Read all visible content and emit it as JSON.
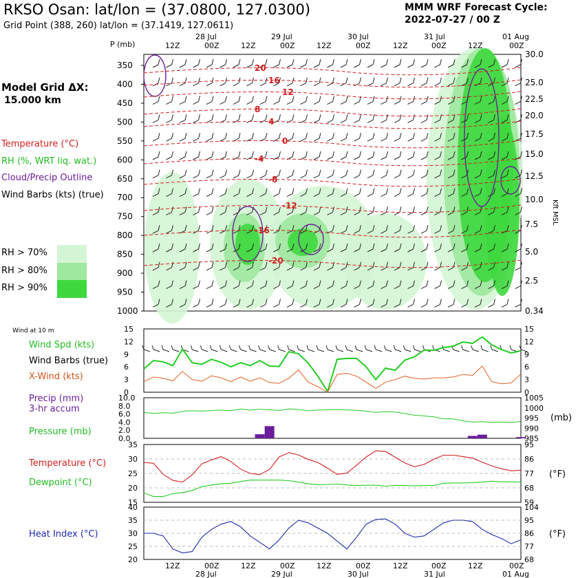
{
  "header": {
    "title": "RKSO Osan:  lat/lon = (37.0800, 127.0300)",
    "subtitle": "Grid Point (388, 260) lat/lon = (37.1419, 127.0611)",
    "cycle_line1": "MMM WRF Forecast Cycle:",
    "cycle_line2": "2022-07-27 / 00  Z",
    "grid_label1": "Model Grid ΔX:",
    "grid_label2": "15.000 km"
  },
  "legend": {
    "temperature": "Temperature (°C)",
    "rh": "RH (%, WRT liq. wat.)",
    "cloud": "Cloud/Precip Outline",
    "wind_barbs": "Wind Barbs (kts) (true)",
    "rh70": "RH > 70%",
    "rh80": "RH > 80%",
    "rh90": "RH > 90%",
    "wind10m": "Wind at 10 m",
    "wind_spd": "Wind Spd (kts)",
    "wind_barbs2": "Wind Barbs (true)",
    "xwind": "X-Wind (kts)",
    "precip1": "Precip (mm)",
    "precip2": "3-hr accum",
    "pressure": "Pressure (mb)",
    "temp_c": "Temperature (°C)",
    "dewpoint": "Dewpoint (°C)",
    "heat_index": "Heat Index (°C)",
    "unit_mb": "(mb)",
    "unit_f1": "(°F)",
    "unit_f2": "(°F)",
    "unit_kft": "Kft MSL",
    "p_label": "P (mb)"
  },
  "colors": {
    "temperature": "#d21e1e",
    "rh_green": "#22cc22",
    "rh70": "#d4f5d4",
    "rh80": "#9fe89f",
    "rh90": "#3ed83e",
    "cloud": "#6a1e9b",
    "xwind": "#e0601e",
    "heat_index": "#1e2aa8"
  },
  "time_axis": {
    "ticks": [
      "12Z",
      "00Z",
      "12Z",
      "00Z",
      "12Z",
      "00Z",
      "12Z",
      "00Z",
      "12Z",
      "00Z"
    ],
    "dates": [
      "28 Jul",
      "29 Jul",
      "30 Jul",
      "31 Jul",
      "01 Aug"
    ]
  },
  "chart_data": [
    {
      "type": "heatmap",
      "ylabel": "P (mb)",
      "pressure_levels": [
        350,
        400,
        450,
        500,
        550,
        600,
        650,
        700,
        750,
        800,
        850,
        900,
        950,
        1000
      ],
      "height_kft": [
        "30.0",
        "25.0",
        "22.5",
        "20.0",
        "17.5",
        "15.0",
        "12.5",
        "10.0",
        "7.5",
        "5.0",
        "2.5",
        "0.34"
      ],
      "isotherm_labels": [
        "20",
        "16",
        "12",
        "8",
        "4",
        "0",
        "-4",
        "-8",
        "-12",
        "-16",
        "-20"
      ]
    },
    {
      "type": "line",
      "yticks": [
        "15",
        "12",
        "9",
        "6",
        "3",
        "0"
      ],
      "series": [
        {
          "name": "Wind Spd (kts)",
          "values": [
            5.5,
            7.5,
            7.2,
            6.3,
            10.2,
            7.0,
            6.6,
            7.8,
            7.1,
            6.0,
            7.0,
            6.3,
            7.5,
            6.2,
            6.1,
            9.6,
            9.1,
            6.9,
            3.8,
            0.2,
            7.8,
            8.0,
            8.0,
            6.0,
            3.0,
            5.7,
            5.2,
            7.6,
            8.4,
            10.0,
            9.9,
            10.6,
            10.9,
            11.9,
            11.6,
            13.1,
            11.2,
            10.1,
            9.3,
            9.8
          ]
        },
        {
          "name": "X-Wind (kts)",
          "values": [
            2.5,
            3.6,
            3.3,
            2.7,
            4.9,
            3.0,
            2.6,
            3.9,
            3.4,
            2.5,
            3.6,
            2.6,
            3.4,
            2.3,
            2.1,
            3.3,
            5.3,
            2.4,
            1.3,
            0.0,
            4.2,
            4.5,
            3.8,
            2.4,
            0.9,
            2.4,
            3.0,
            3.8,
            3.3,
            3.1,
            3.4,
            3.4,
            3.6,
            4.2,
            4.0,
            6.2,
            2.5,
            2.0,
            2.2,
            4.3
          ]
        }
      ]
    },
    {
      "type": "bar",
      "yticks_left": [
        "10.0",
        "8.0",
        "6.0",
        "4.0",
        "2.0",
        "0.0"
      ],
      "yticks_right": [
        "1005",
        "1000",
        "995",
        "990",
        "985"
      ],
      "series": [
        {
          "name": "Pressure (mb)",
          "values": [
            997.8,
            997.3,
            997.6,
            997.4,
            998.3,
            998.6,
            998.4,
            998.7,
            998.9,
            998.7,
            999.4,
            998.9,
            999.3,
            999.1,
            998.7,
            999.5,
            999.2,
            998.6,
            998.9,
            999.1,
            999.1,
            999.0,
            998.8,
            998.4,
            997.8,
            998.1,
            997.9,
            997.2,
            996.4,
            996.0,
            995.6,
            994.6,
            994.6,
            993.6,
            993.0,
            993.2,
            992.8,
            993.0,
            992.8,
            993.3
          ]
        },
        {
          "name": "Precip (mm)",
          "values": [
            0,
            0,
            0,
            0,
            0,
            0,
            0,
            0,
            0,
            0,
            0,
            0,
            1.0,
            3.0,
            0,
            0,
            0,
            0,
            0,
            0,
            0,
            0,
            0,
            0,
            0,
            0,
            0,
            0,
            0,
            0,
            0,
            0,
            0,
            0,
            0.6,
            0.9,
            0,
            0,
            0,
            0.3
          ]
        }
      ]
    },
    {
      "type": "line",
      "yticks_left": [
        "35",
        "30",
        "25",
        "20",
        "15"
      ],
      "yticks_right": [
        "95",
        "86",
        "77",
        "68",
        "59"
      ],
      "series": [
        {
          "name": "Temperature (°C)",
          "values": [
            28.8,
            28.5,
            24.7,
            22.6,
            22.0,
            24.5,
            28.3,
            29.7,
            30.8,
            29.1,
            26.5,
            25.0,
            24.6,
            26.4,
            30.7,
            32.2,
            31.4,
            29.8,
            28.8,
            26.8,
            24.7,
            25.1,
            27.8,
            30.7,
            32.8,
            32.6,
            30.6,
            28.6,
            27.3,
            28.1,
            29.9,
            31.3,
            31.3,
            30.8,
            30.3,
            28.9,
            27.6,
            26.6,
            25.9,
            26.1
          ]
        },
        {
          "name": "Dewpoint (°C)",
          "values": [
            18.3,
            17.0,
            17.0,
            18.0,
            18.4,
            19.1,
            20.4,
            21.0,
            21.4,
            21.6,
            22.2,
            22.7,
            22.7,
            22.7,
            22.7,
            22.5,
            22.0,
            21.4,
            21.1,
            21.2,
            21.3,
            21.0,
            20.8,
            20.9,
            20.9,
            20.6,
            20.8,
            20.8,
            20.7,
            20.8,
            20.8,
            21.6,
            21.7,
            21.7,
            21.8,
            22.0,
            22.3,
            22.1,
            22.1,
            22.0
          ]
        }
      ]
    },
    {
      "type": "line",
      "yticks_left": [
        "40",
        "35",
        "30",
        "25",
        "20"
      ],
      "yticks_right": [
        "104",
        "95",
        "86",
        "77",
        "68"
      ],
      "series": [
        {
          "name": "Heat Index (°C)",
          "values": [
            30.0,
            30.0,
            29.0,
            24.0,
            22.5,
            23.0,
            28.5,
            31.5,
            33.5,
            34.5,
            32.5,
            29.0,
            26.5,
            24.0,
            27.5,
            32.0,
            35.0,
            34.0,
            32.0,
            30.0,
            27.0,
            24.0,
            28.5,
            33.5,
            35.3,
            35.5,
            33.5,
            30.0,
            28.5,
            29.0,
            31.5,
            34.0,
            35.0,
            35.0,
            34.5,
            31.5,
            29.5,
            28.0,
            26.0,
            27.5
          ]
        }
      ]
    }
  ]
}
